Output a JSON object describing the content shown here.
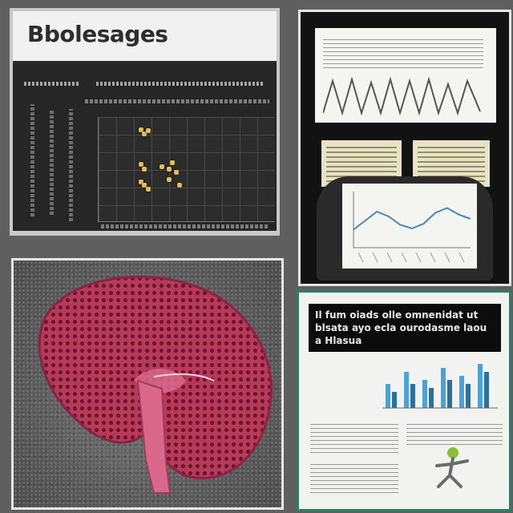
{
  "panels": {
    "scatter": {
      "title": "Bbolesages",
      "dot_color": "#e3bb57",
      "chart_data": {
        "type": "scatter",
        "x": [
          12,
          13,
          14,
          12,
          13,
          18,
          20,
          21,
          22,
          12,
          13,
          14,
          20,
          23
        ],
        "y": [
          88,
          84,
          87,
          55,
          50,
          52,
          50,
          56,
          47,
          38,
          35,
          31,
          40,
          35
        ]
      }
    },
    "documents": {
      "line_chart": {
        "type": "line",
        "values": [
          30,
          45,
          60,
          52,
          38,
          32,
          40,
          58,
          66,
          55,
          48
        ]
      }
    },
    "liver": {
      "colors": {
        "tissue": "#b83a5a",
        "tissue_dark": "#7b1c38",
        "duct": "#d9688a"
      }
    },
    "poster": {
      "header_lines": [
        "Il fum oiads olle omnenidat ut",
        "blsata ayo ecla ourodasme laou",
        "a Hlasua"
      ],
      "chart_data": {
        "type": "bar",
        "series": [
          {
            "values": [
              6,
              9,
              7,
              10,
              8,
              11
            ]
          },
          {
            "values": [
              4,
              6,
              5,
              7,
              6,
              9
            ]
          }
        ]
      }
    }
  }
}
